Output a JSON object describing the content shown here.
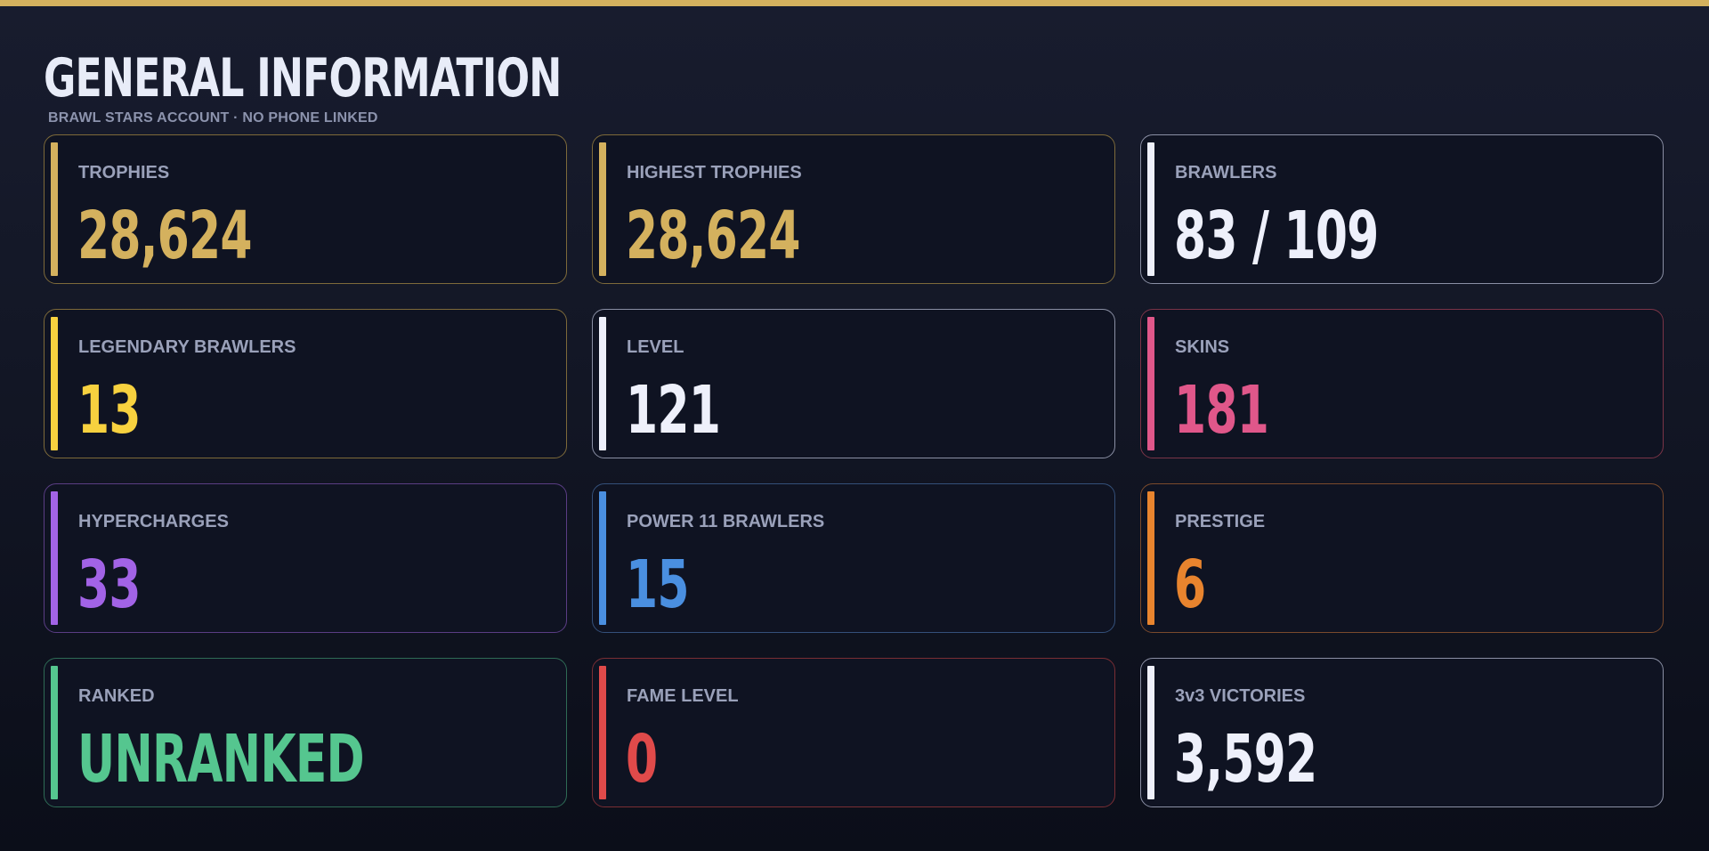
{
  "header": {
    "title": "GENERAL INFORMATION",
    "subtitle": "BRAWL STARS ACCOUNT  ·  NO PHONE LINKED"
  },
  "stats": [
    {
      "label": "TROPHIES",
      "value": "28,624",
      "color": "#d4b15e",
      "border": "#7d6a3a"
    },
    {
      "label": "HIGHEST TROPHIES",
      "value": "28,624",
      "color": "#d4b15e",
      "border": "#7d6a3a"
    },
    {
      "label": "BRAWLERS",
      "value": "83 / 109",
      "color": "#eef0fb",
      "border": "#8a8fa4"
    },
    {
      "label": "LEGENDARY BRAWLERS",
      "value": "13",
      "color": "#f7d13f",
      "border": "#7d6a3a"
    },
    {
      "label": "LEVEL",
      "value": "121",
      "color": "#eef0fb",
      "border": "#8a8fa4"
    },
    {
      "label": "SKINS",
      "value": "181",
      "color": "#e0578a",
      "border": "#7a3447"
    },
    {
      "label": "HYPERCHARGES",
      "value": "33",
      "color": "#a263e6",
      "border": "#5a3d84"
    },
    {
      "label": "POWER 11 BRAWLERS",
      "value": "15",
      "color": "#4a8fe0",
      "border": "#34507a"
    },
    {
      "label": "PRESTIGE",
      "value": "6",
      "color": "#e8842e",
      "border": "#7a4a2c"
    },
    {
      "label": "RANKED",
      "value": "UNRANKED",
      "color": "#55c68f",
      "border": "#2e6b55"
    },
    {
      "label": "FAME LEVEL",
      "value": "0",
      "color": "#e04a4a",
      "border": "#7a2e34"
    },
    {
      "label": "3v3 VICTORIES",
      "value": "3,592",
      "color": "#eef0fb",
      "border": "#8a8fa4"
    }
  ]
}
